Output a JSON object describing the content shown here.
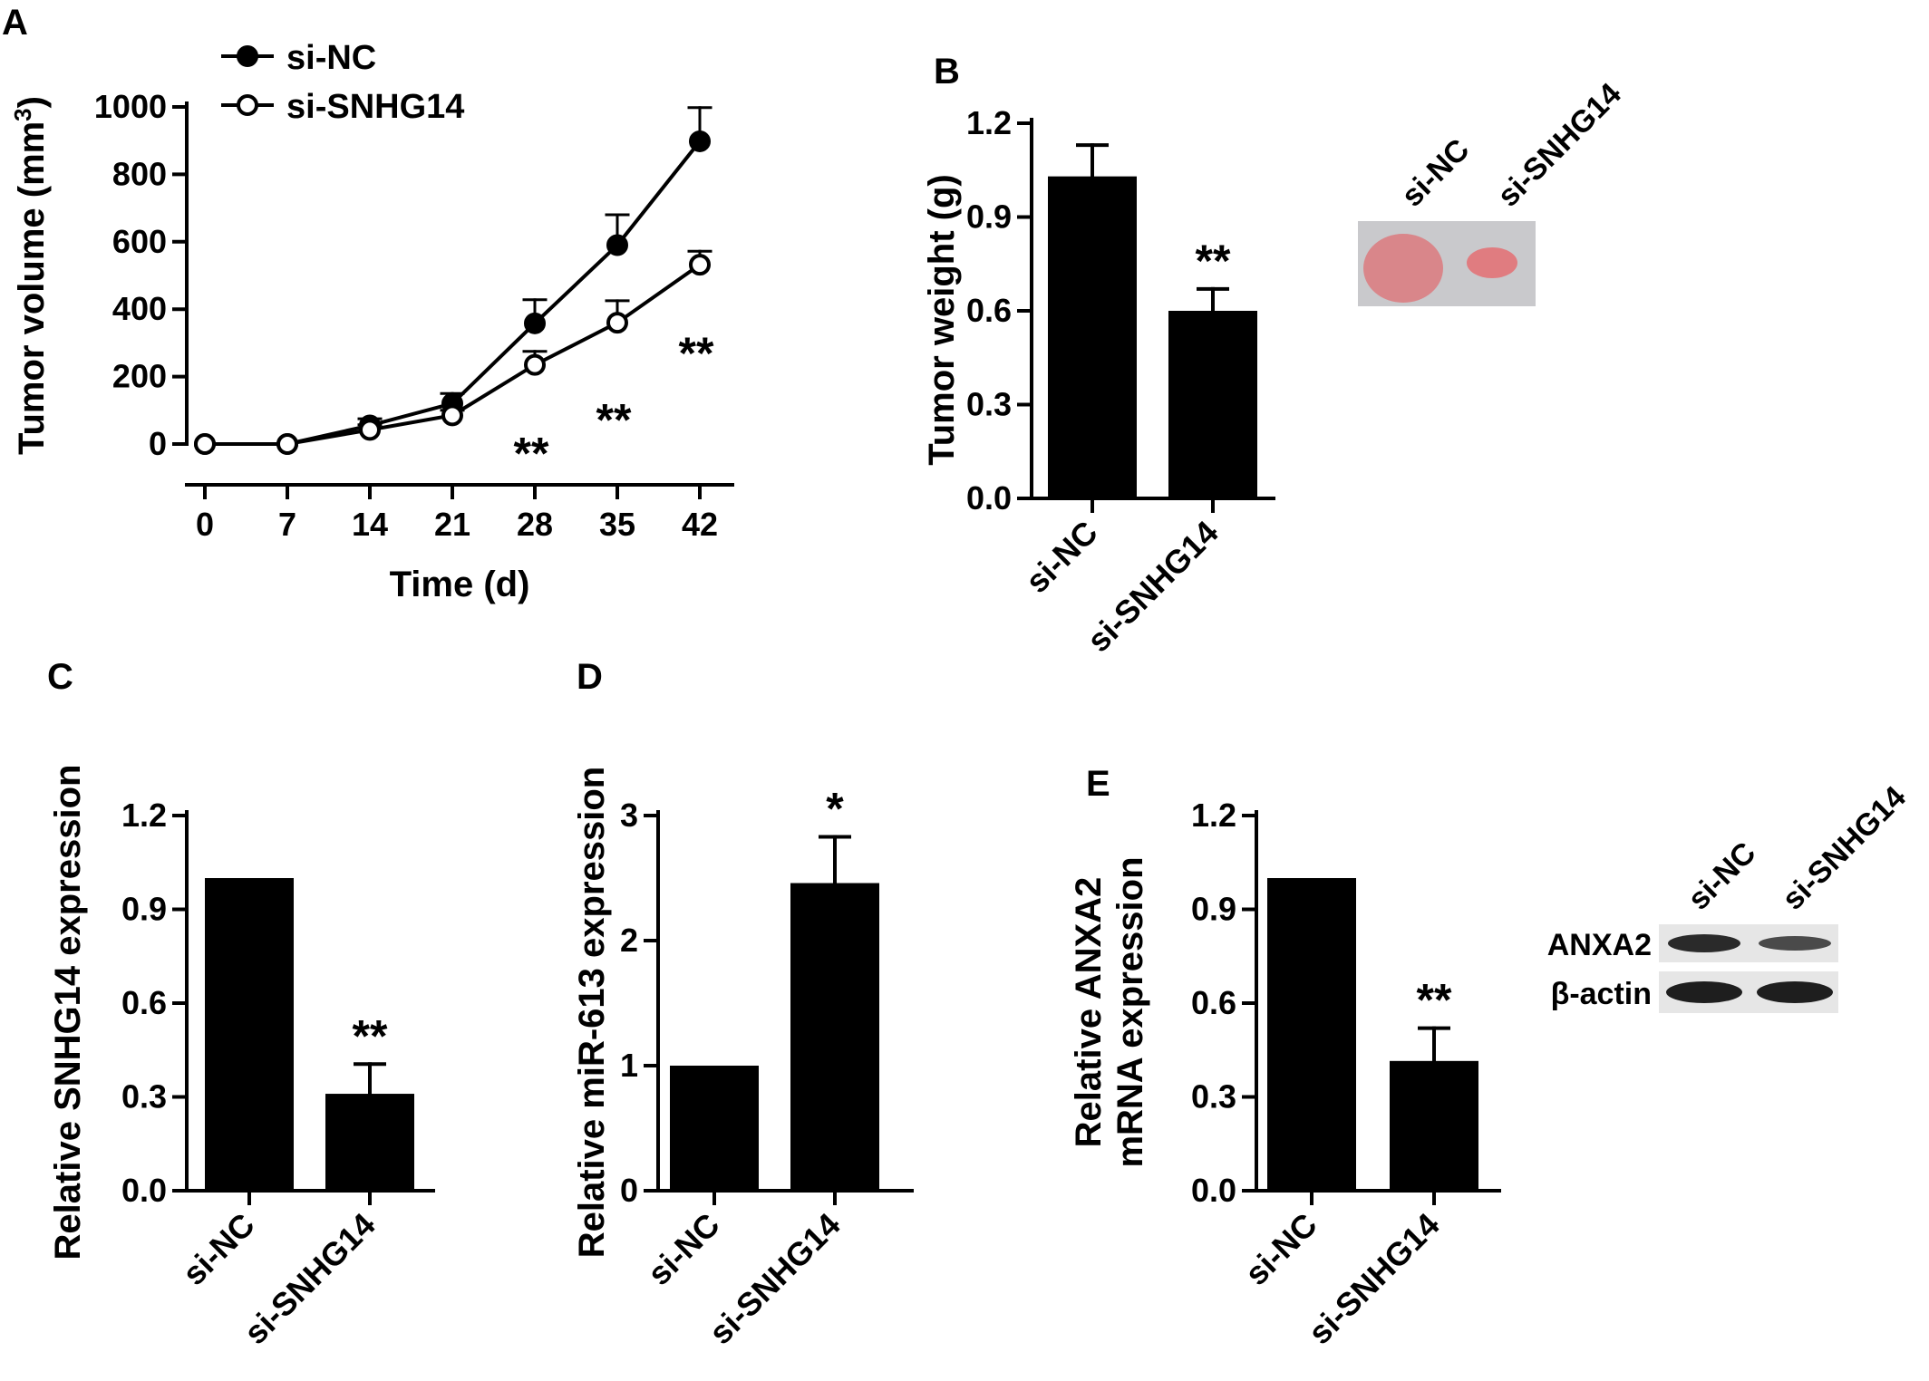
{
  "chart_data": [
    {
      "panel": "A",
      "type": "line",
      "x": [
        0,
        7,
        14,
        21,
        28,
        35,
        42
      ],
      "xlabel": "Time (d)",
      "ylabel": "Tumor volume (mm³)",
      "ylim": [
        0,
        1000
      ],
      "yticks": [
        0,
        200,
        400,
        600,
        800,
        1000
      ],
      "grid": false,
      "legend_position": "top-left",
      "series": [
        {
          "name": "si-NC",
          "marker": "filled-circle",
          "values": [
            0,
            0,
            55,
            120,
            358,
            590,
            898
          ],
          "errors": [
            0,
            0,
            20,
            30,
            70,
            90,
            100
          ]
        },
        {
          "name": "si-SNHG14",
          "marker": "open-circle",
          "values": [
            0,
            0,
            42,
            85,
            235,
            360,
            532
          ],
          "errors": [
            0,
            0,
            15,
            15,
            40,
            65,
            40
          ]
        }
      ],
      "annotations": [
        {
          "x": 28,
          "text": "**"
        },
        {
          "x": 35,
          "text": "**"
        },
        {
          "x": 42,
          "text": "**"
        }
      ]
    },
    {
      "panel": "B",
      "type": "bar",
      "categories": [
        "si-NC",
        "si-SNHG14"
      ],
      "values": [
        1.03,
        0.6
      ],
      "errors": [
        0.1,
        0.07
      ],
      "ylabel": "Tumor weight (g)",
      "ylim": [
        0,
        1.2
      ],
      "yticks": [
        "0.0",
        "0.3",
        "0.6",
        "0.9",
        "1.2"
      ],
      "annotations": [
        {
          "category": "si-SNHG14",
          "text": "**"
        }
      ],
      "inset_photo_labels": [
        "si-NC",
        "si-SNHG14"
      ]
    },
    {
      "panel": "C",
      "type": "bar",
      "categories": [
        "si-NC",
        "si-SNHG14"
      ],
      "values": [
        1.0,
        0.31
      ],
      "errors": [
        0,
        0.095
      ],
      "ylabel": "Relative SNHG14 expression",
      "ylim": [
        0,
        1.2
      ],
      "yticks": [
        "0.0",
        "0.3",
        "0.6",
        "0.9",
        "1.2"
      ],
      "annotations": [
        {
          "category": "si-SNHG14",
          "text": "**"
        }
      ]
    },
    {
      "panel": "D",
      "type": "bar",
      "categories": [
        "si-NC",
        "si-SNHG14"
      ],
      "values": [
        1.0,
        2.46
      ],
      "errors": [
        0,
        0.37
      ],
      "ylabel": "Relative miR-613 expression",
      "ylim": [
        0,
        3
      ],
      "yticks": [
        "0",
        "1",
        "2",
        "3"
      ],
      "annotations": [
        {
          "category": "si-SNHG14",
          "text": "*"
        }
      ]
    },
    {
      "panel": "E",
      "type": "bar",
      "categories": [
        "si-NC",
        "si-SNHG14"
      ],
      "values": [
        1.0,
        0.415
      ],
      "errors": [
        0,
        0.105
      ],
      "ylabel": "Relative ANXA2\nmRNA expression",
      "ylim": [
        0,
        1.2
      ],
      "yticks": [
        "0.0",
        "0.3",
        "0.6",
        "0.9",
        "1.2"
      ],
      "annotations": [
        {
          "category": "si-SNHG14",
          "text": "**"
        }
      ],
      "blot": {
        "lane_labels": [
          "si-NC",
          "si-SNHG14"
        ],
        "row_labels": [
          "ANXA2",
          "β-actin"
        ]
      }
    }
  ],
  "colors": {
    "bar": "#000000",
    "axis": "#000000",
    "background": "#ffffff",
    "photo_bg": "#c9c9cc",
    "tumor": "#d9868a"
  }
}
